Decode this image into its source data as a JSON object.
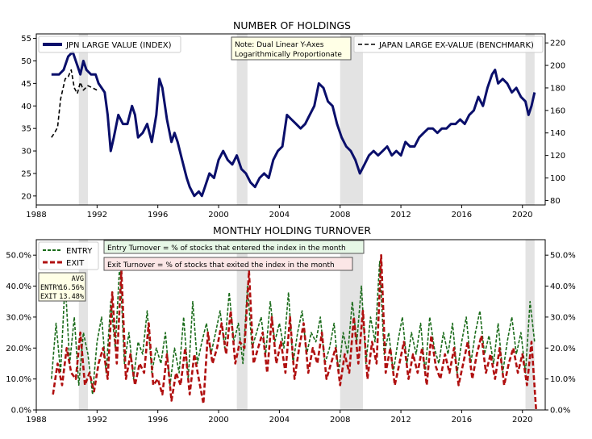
{
  "chart_data": [
    {
      "type": "line",
      "title": "NUMBER OF HOLDINGS",
      "xlim": [
        1988.0,
        2021.5
      ],
      "x_ticks": [
        "1988",
        "1992",
        "1996",
        "2000",
        "2004",
        "2008",
        "2012",
        "2016",
        "2020"
      ],
      "ylim_left": [
        18,
        56
      ],
      "y_ticks_left": [
        "20",
        "25",
        "30",
        "35",
        "40",
        "45",
        "50",
        "55"
      ],
      "ylim_right": [
        76,
        228
      ],
      "y_ticks_right": [
        "80",
        "100",
        "120",
        "140",
        "160",
        "180",
        "200",
        "220"
      ],
      "recessions": [
        [
          1990.8,
          1991.4
        ],
        [
          2001.2,
          2001.9
        ],
        [
          2008.0,
          2009.5
        ],
        [
          2020.2,
          2020.8
        ]
      ],
      "legend_left": "JPN LARGE VALUE (INDEX)",
      "legend_right": "JAPAN LARGE EX-VALUE (BENCHMARK)",
      "note": [
        "Note: Dual Linear Y-Axes",
        "Logarithmically Proportionate"
      ],
      "series": [
        {
          "name": "JPN LARGE VALUE (INDEX)",
          "axis": "left",
          "color": "#0a0f6b",
          "style": "solid",
          "x": [
            1989.0,
            1989.5,
            1989.8,
            1990.1,
            1990.4,
            1990.7,
            1990.9,
            1991.1,
            1991.3,
            1991.6,
            1991.9,
            1992.1,
            1992.3,
            1992.5,
            1992.7,
            1992.9,
            1993.1,
            1993.4,
            1993.7,
            1994.0,
            1994.3,
            1994.5,
            1994.7,
            1995.0,
            1995.3,
            1995.6,
            1995.9,
            1996.1,
            1996.3,
            1996.6,
            1996.9,
            1997.1,
            1997.3,
            1997.6,
            1997.9,
            1998.1,
            1998.4,
            1998.7,
            1998.9,
            1999.1,
            1999.4,
            1999.7,
            2000.0,
            2000.3,
            2000.6,
            2000.9,
            2001.2,
            2001.5,
            2001.8,
            2002.1,
            2002.4,
            2002.7,
            2003.0,
            2003.3,
            2003.6,
            2003.9,
            2004.2,
            2004.5,
            2004.8,
            2005.1,
            2005.4,
            2005.7,
            2006.0,
            2006.3,
            2006.6,
            2006.9,
            2007.2,
            2007.5,
            2007.8,
            2008.1,
            2008.4,
            2008.7,
            2009.0,
            2009.3,
            2009.6,
            2009.9,
            2010.2,
            2010.5,
            2010.8,
            2011.1,
            2011.4,
            2011.7,
            2012.0,
            2012.3,
            2012.6,
            2012.9,
            2013.2,
            2013.5,
            2013.8,
            2014.1,
            2014.4,
            2014.7,
            2015.0,
            2015.3,
            2015.6,
            2015.9,
            2016.2,
            2016.5,
            2016.8,
            2017.1,
            2017.4,
            2017.7,
            2018.0,
            2018.2,
            2018.4,
            2018.7,
            2019.0,
            2019.3,
            2019.6,
            2019.9,
            2020.2,
            2020.4,
            2020.6,
            2020.8
          ],
          "values": [
            47,
            47,
            48,
            51,
            52,
            49,
            47,
            50,
            48,
            47,
            47,
            45,
            44,
            43,
            38,
            30,
            33,
            38,
            36,
            36,
            40,
            38,
            33,
            34,
            36,
            32,
            38,
            46,
            44,
            37,
            32,
            34,
            32,
            28,
            24,
            22,
            20,
            21,
            20,
            22,
            25,
            24,
            28,
            30,
            28,
            27,
            29,
            26,
            25,
            23,
            22,
            24,
            25,
            24,
            28,
            30,
            31,
            38,
            37,
            36,
            35,
            36,
            38,
            40,
            45,
            44,
            41,
            40,
            36,
            33,
            31,
            30,
            28,
            25,
            27,
            29,
            30,
            29,
            30,
            31,
            29,
            30,
            29,
            32,
            31,
            31,
            33,
            34,
            35,
            35,
            34,
            35,
            35,
            36,
            36,
            37,
            36,
            38,
            39,
            42,
            40,
            44,
            47,
            48,
            45,
            46,
            45,
            43,
            44,
            42,
            41,
            38,
            40,
            43
          ]
        },
        {
          "name": "JAPAN LARGE EX-VALUE (BENCHMARK)",
          "axis": "right",
          "color": "#000000",
          "style": "dashed",
          "x": [
            1989.0,
            1989.2,
            1989.4,
            1989.6,
            1989.9,
            1990.1,
            1990.3,
            1990.5,
            1990.7,
            1990.9,
            1991.1,
            1991.4,
            1991.7,
            1992.0
          ],
          "values": [
            136,
            140,
            145,
            170,
            188,
            190,
            196,
            180,
            175,
            185,
            178,
            182,
            180,
            178
          ]
        }
      ]
    },
    {
      "type": "line",
      "title": "MONTHLY HOLDING TURNOVER",
      "xlim": [
        1988.0,
        2021.5
      ],
      "x_ticks": [
        "1988",
        "1992",
        "1996",
        "2000",
        "2004",
        "2008",
        "2012",
        "2016",
        "2020"
      ],
      "ylim": [
        0.0,
        0.55
      ],
      "y_ticks": [
        "0.0%",
        "10.0%",
        "20.0%",
        "30.0%",
        "40.0%",
        "50.0%"
      ],
      "recessions": [
        [
          1990.8,
          1991.4
        ],
        [
          2001.2,
          2001.9
        ],
        [
          2008.0,
          2009.5
        ],
        [
          2020.2,
          2020.8
        ]
      ],
      "legend": [
        "ENTRY",
        "EXIT"
      ],
      "annotation_entry": "Entry Turnover = % of stocks that entered the index in the month",
      "annotation_exit": "Exit Turnover = % of stocks that exited the index in the month",
      "avg_table": {
        "header": "AVG",
        "entry_label": "ENTRY",
        "entry_value": "16.56%",
        "exit_label": "EXIT",
        "exit_value": "13.48%"
      },
      "series": [
        {
          "name": "ENTRY",
          "color": "#1a6b1a",
          "style": "dashed",
          "x": [
            1989.0,
            1989.3,
            1989.6,
            1989.9,
            1990.2,
            1990.5,
            1990.8,
            1991.1,
            1991.4,
            1991.7,
            1992.0,
            1992.3,
            1992.6,
            1992.9,
            1993.2,
            1993.5,
            1993.8,
            1994.1,
            1994.4,
            1994.7,
            1995.0,
            1995.3,
            1995.6,
            1995.9,
            1996.2,
            1996.5,
            1996.8,
            1997.1,
            1997.4,
            1997.7,
            1998.0,
            1998.3,
            1998.6,
            1998.9,
            1999.2,
            1999.5,
            1999.8,
            2000.1,
            2000.4,
            2000.7,
            2001.0,
            2001.3,
            2001.6,
            2001.9,
            2002.2,
            2002.5,
            2002.8,
            2003.1,
            2003.4,
            2003.7,
            2004.0,
            2004.3,
            2004.6,
            2004.9,
            2005.2,
            2005.5,
            2005.8,
            2006.1,
            2006.4,
            2006.7,
            2007.0,
            2007.3,
            2007.6,
            2007.9,
            2008.2,
            2008.5,
            2008.8,
            2009.1,
            2009.4,
            2009.7,
            2010.0,
            2010.3,
            2010.6,
            2010.9,
            2011.2,
            2011.5,
            2011.8,
            2012.1,
            2012.4,
            2012.7,
            2013.0,
            2013.3,
            2013.6,
            2013.9,
            2014.2,
            2014.5,
            2014.8,
            2015.1,
            2015.4,
            2015.7,
            2016.0,
            2016.3,
            2016.6,
            2016.9,
            2017.2,
            2017.5,
            2017.8,
            2018.1,
            2018.4,
            2018.7,
            2019.0,
            2019.3,
            2019.6,
            2019.9,
            2020.2,
            2020.5,
            2020.8
          ],
          "values": [
            0.1,
            0.28,
            0.12,
            0.42,
            0.15,
            0.3,
            0.08,
            0.25,
            0.18,
            0.05,
            0.22,
            0.3,
            0.12,
            0.35,
            0.2,
            0.48,
            0.15,
            0.25,
            0.1,
            0.22,
            0.18,
            0.32,
            0.12,
            0.2,
            0.15,
            0.25,
            0.08,
            0.2,
            0.12,
            0.3,
            0.1,
            0.35,
            0.15,
            0.22,
            0.28,
            0.18,
            0.25,
            0.32,
            0.2,
            0.38,
            0.22,
            0.28,
            0.15,
            0.4,
            0.2,
            0.25,
            0.3,
            0.18,
            0.35,
            0.22,
            0.28,
            0.2,
            0.38,
            0.15,
            0.25,
            0.32,
            0.18,
            0.25,
            0.22,
            0.3,
            0.15,
            0.2,
            0.28,
            0.12,
            0.25,
            0.18,
            0.35,
            0.22,
            0.4,
            0.15,
            0.3,
            0.22,
            0.48,
            0.18,
            0.25,
            0.12,
            0.22,
            0.3,
            0.15,
            0.25,
            0.18,
            0.28,
            0.12,
            0.3,
            0.2,
            0.15,
            0.25,
            0.18,
            0.28,
            0.12,
            0.22,
            0.3,
            0.15,
            0.25,
            0.32,
            0.18,
            0.24,
            0.15,
            0.28,
            0.12,
            0.22,
            0.3,
            0.18,
            0.25,
            0.12,
            0.35,
            0.22
          ]
        },
        {
          "name": "EXIT",
          "color": "#b01010",
          "style": "dashed",
          "x": [
            1989.1,
            1989.4,
            1989.7,
            1990.0,
            1990.3,
            1990.6,
            1990.9,
            1991.2,
            1991.5,
            1991.8,
            1992.1,
            1992.4,
            1992.7,
            1993.0,
            1993.3,
            1993.6,
            1993.9,
            1994.2,
            1994.5,
            1994.8,
            1995.1,
            1995.4,
            1995.7,
            1996.0,
            1996.3,
            1996.6,
            1996.9,
            1997.2,
            1997.5,
            1997.8,
            1998.1,
            1998.4,
            1998.7,
            1999.0,
            1999.3,
            1999.6,
            1999.9,
            2000.2,
            2000.5,
            2000.8,
            2001.1,
            2001.4,
            2001.7,
            2002.0,
            2002.3,
            2002.6,
            2002.9,
            2003.2,
            2003.5,
            2003.8,
            2004.1,
            2004.4,
            2004.7,
            2005.0,
            2005.3,
            2005.6,
            2005.9,
            2006.2,
            2006.5,
            2006.8,
            2007.1,
            2007.4,
            2007.7,
            2008.0,
            2008.3,
            2008.6,
            2008.9,
            2009.2,
            2009.5,
            2009.8,
            2010.1,
            2010.4,
            2010.7,
            2011.0,
            2011.3,
            2011.6,
            2011.9,
            2012.2,
            2012.5,
            2012.8,
            2013.1,
            2013.4,
            2013.7,
            2014.0,
            2014.3,
            2014.6,
            2014.9,
            2015.2,
            2015.5,
            2015.8,
            2016.1,
            2016.4,
            2016.7,
            2017.0,
            2017.3,
            2017.6,
            2017.9,
            2018.2,
            2018.5,
            2018.8,
            2019.1,
            2019.4,
            2019.7,
            2020.0,
            2020.3,
            2020.6,
            2020.9
          ],
          "values": [
            0.05,
            0.15,
            0.08,
            0.2,
            0.12,
            0.1,
            0.25,
            0.08,
            0.12,
            0.06,
            0.15,
            0.2,
            0.1,
            0.38,
            0.15,
            0.45,
            0.1,
            0.18,
            0.08,
            0.15,
            0.12,
            0.28,
            0.08,
            0.1,
            0.05,
            0.18,
            0.03,
            0.12,
            0.08,
            0.2,
            0.05,
            0.18,
            0.1,
            0.02,
            0.25,
            0.15,
            0.2,
            0.28,
            0.18,
            0.32,
            0.15,
            0.22,
            0.2,
            0.45,
            0.15,
            0.2,
            0.25,
            0.12,
            0.3,
            0.15,
            0.22,
            0.12,
            0.3,
            0.1,
            0.2,
            0.28,
            0.12,
            0.2,
            0.15,
            0.25,
            0.1,
            0.15,
            0.2,
            0.08,
            0.18,
            0.12,
            0.3,
            0.15,
            0.32,
            0.1,
            0.22,
            0.15,
            0.5,
            0.12,
            0.2,
            0.08,
            0.15,
            0.22,
            0.1,
            0.18,
            0.12,
            0.2,
            0.08,
            0.24,
            0.14,
            0.1,
            0.18,
            0.12,
            0.2,
            0.08,
            0.15,
            0.22,
            0.1,
            0.18,
            0.24,
            0.12,
            0.18,
            0.1,
            0.2,
            0.08,
            0.15,
            0.2,
            0.12,
            0.18,
            0.08,
            0.22,
            0.0
          ]
        }
      ]
    }
  ]
}
